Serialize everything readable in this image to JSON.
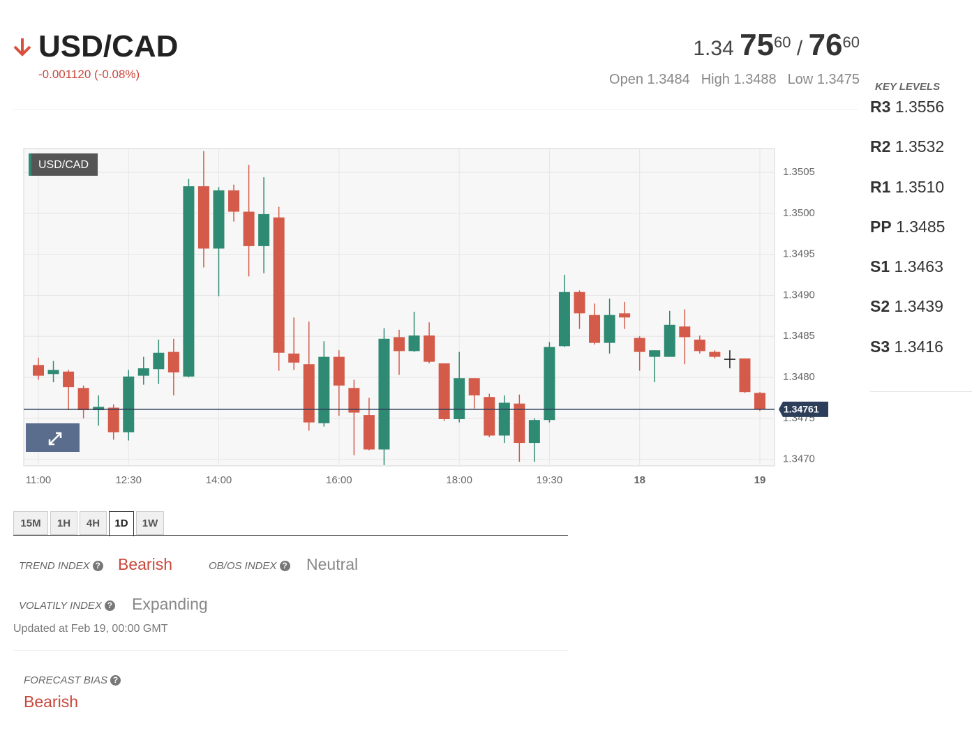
{
  "header": {
    "pair": "USD/CAD",
    "change": "-0.001120 (-0.08%)",
    "bid": {
      "big": "1.34",
      "pips": "75",
      "fraction": "60"
    },
    "separator": "/",
    "ask": {
      "pips": "76",
      "fraction": "60"
    },
    "stats": [
      {
        "label": "Open",
        "value": "1.3484"
      },
      {
        "label": "High",
        "value": "1.3488"
      },
      {
        "label": "Low",
        "value": "1.3475"
      }
    ]
  },
  "key_levels": {
    "title": "KEY LEVELS",
    "items": [
      {
        "label": "R3",
        "value": "1.3556"
      },
      {
        "label": "R2",
        "value": "1.3532"
      },
      {
        "label": "R1",
        "value": "1.3510"
      },
      {
        "label": "PP",
        "value": "1.3485"
      },
      {
        "label": "S1",
        "value": "1.3463"
      },
      {
        "label": "S2",
        "value": "1.3439"
      },
      {
        "label": "S3",
        "value": "1.3416"
      }
    ]
  },
  "chart_data": {
    "type": "candlestick",
    "series_label": "USD/CAD",
    "up_color": "#2f8a73",
    "down_color": "#d45a49",
    "doji_color": "#222222",
    "grid": true,
    "categories": [
      "11:00",
      null,
      null,
      null,
      null,
      null,
      "12:30",
      null,
      null,
      null,
      null,
      null,
      "14:00",
      null,
      null,
      null,
      null,
      null,
      null,
      null,
      "16:00",
      null,
      null,
      null,
      null,
      null,
      null,
      null,
      "18:00",
      null,
      null,
      null,
      null,
      null,
      "19:30",
      null,
      null,
      null,
      null,
      null,
      "18",
      null,
      null,
      null,
      null,
      null,
      null,
      null,
      "19"
    ],
    "open": [
      1.34815,
      1.34804,
      1.34807,
      1.34787,
      1.3476,
      1.34763,
      1.34733,
      1.34802,
      1.3481,
      1.34831,
      1.34801,
      1.35033,
      1.34957,
      1.35028,
      1.35002,
      1.3496,
      1.34995,
      1.34829,
      1.34816,
      1.34744,
      1.34825,
      1.34787,
      1.34754,
      1.34712,
      1.34849,
      1.34832,
      1.34851,
      1.34817,
      1.34749,
      1.34799,
      1.34776,
      1.34729,
      1.34768,
      1.3472,
      1.34748,
      1.34838,
      1.34904,
      1.34876,
      1.34842,
      1.34878,
      1.34848,
      1.34825,
      1.34825,
      1.34862,
      1.34846,
      1.34831,
      1.34822,
      1.34823,
      1.34781
    ],
    "high": [
      1.34824,
      1.3482,
      1.34809,
      1.3479,
      1.34778,
      1.34767,
      1.34809,
      1.34825,
      1.34846,
      1.34847,
      1.35042,
      1.35076,
      1.35032,
      1.35035,
      1.35059,
      1.35044,
      1.35008,
      1.34873,
      1.34868,
      1.34844,
      1.34833,
      1.34797,
      1.34775,
      1.3486,
      1.34858,
      1.3488,
      1.34867,
      1.34817,
      1.34831,
      1.34799,
      1.3478,
      1.34778,
      1.34779,
      1.3475,
      1.34843,
      1.34925,
      1.34906,
      1.3489,
      1.34896,
      1.34892,
      1.3485,
      1.34833,
      1.34881,
      1.34883,
      1.34851,
      1.34833,
      1.34833,
      1.34823,
      1.34782
    ],
    "low": [
      1.34797,
      1.34794,
      1.3476,
      1.3475,
      1.34741,
      1.34724,
      1.34723,
      1.34791,
      1.34792,
      1.34778,
      1.348,
      1.34934,
      1.34899,
      1.3499,
      1.34923,
      1.34927,
      1.34808,
      1.34809,
      1.34735,
      1.3474,
      1.34753,
      1.34705,
      1.34711,
      1.34693,
      1.34803,
      1.34831,
      1.34817,
      1.34747,
      1.34745,
      1.34762,
      1.34727,
      1.3472,
      1.34697,
      1.34697,
      1.34745,
      1.34837,
      1.34859,
      1.3484,
      1.34829,
      1.34859,
      1.34808,
      1.34794,
      1.34825,
      1.34816,
      1.34829,
      1.34823,
      1.34811,
      1.34781,
      1.34759
    ],
    "close": [
      1.34802,
      1.34809,
      1.34788,
      1.3476,
      1.34764,
      1.34733,
      1.34801,
      1.34811,
      1.3483,
      1.34806,
      1.35033,
      1.34957,
      1.35028,
      1.35002,
      1.3496,
      1.34999,
      1.3483,
      1.34818,
      1.34745,
      1.34825,
      1.3479,
      1.34757,
      1.34712,
      1.34847,
      1.34832,
      1.34851,
      1.34819,
      1.34749,
      1.34799,
      1.34778,
      1.34729,
      1.34769,
      1.3472,
      1.34748,
      1.34837,
      1.34904,
      1.34878,
      1.34842,
      1.34876,
      1.34873,
      1.34831,
      1.34833,
      1.34864,
      1.34849,
      1.34832,
      1.34825,
      1.34822,
      1.34782,
      1.34761
    ],
    "last_price": 1.34761,
    "ylim": [
      1.34692,
      1.35079
    ],
    "yticks": [
      {
        "value": 1.347,
        "label": "1.3470"
      },
      1.3475,
      {
        "value": 1.348,
        "label": "1.3480"
      },
      1.3485,
      {
        "value": 1.349,
        "label": "1.3490"
      },
      1.3495,
      {
        "value": 1.35,
        "label": "1.3500"
      },
      1.3505
    ]
  },
  "timeframes": {
    "items": [
      "15M",
      "1H",
      "4H",
      "1D",
      "1W"
    ],
    "active": "1D"
  },
  "indices": [
    {
      "label": "TREND INDEX",
      "value": "Bearish"
    },
    {
      "label": "OB/OS INDEX",
      "value": "Neutral"
    },
    {
      "label": "VOLATILY INDEX",
      "value": "Expanding"
    }
  ],
  "updated": "Updated at Feb 19, 00:00 GMT",
  "forecast": {
    "label": "FORECAST BIAS",
    "value": "Bearish"
  }
}
